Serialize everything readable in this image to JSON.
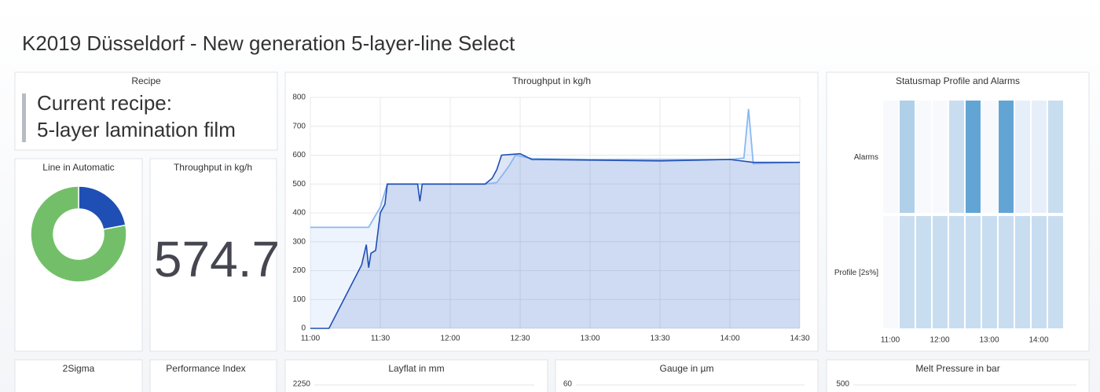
{
  "title": "K2019 Düsseldorf - New generation 5-layer-line Select",
  "recipe": {
    "title": "Recipe",
    "line1": "Current recipe:",
    "line2": "5-layer lamination film"
  },
  "stat": {
    "title": "Throughput in kg/h",
    "value": 574.7
  },
  "panels": {
    "sigma": "2Sigma",
    "performance": "Performance Index"
  },
  "chart_data": [
    {
      "type": "pie",
      "title": "Line in Automatic",
      "donut": true,
      "values": [
        22,
        78
      ],
      "colors": [
        "#1f4fb4",
        "#73bf69"
      ]
    },
    {
      "type": "line",
      "title": "Throughput in kg/h",
      "grid": true,
      "xlim": [
        "11:00",
        "14:30"
      ],
      "xticks": [
        "11:00",
        "11:30",
        "12:00",
        "12:30",
        "13:00",
        "13:30",
        "14:00",
        "14:30"
      ],
      "ylim": [
        0,
        800
      ],
      "yticks": [
        0,
        100,
        200,
        300,
        400,
        500,
        600,
        700,
        800
      ],
      "series": [
        {
          "color": "#8ab8f0",
          "x": [
            "11:00",
            "11:25",
            "11:30",
            "11:33",
            "12:15",
            "12:20",
            "12:25",
            "12:28",
            "12:35",
            "13:00",
            "14:00",
            "14:06",
            "14:08",
            "14:10",
            "14:30"
          ],
          "values": [
            350,
            350,
            420,
            500,
            500,
            505,
            560,
            600,
            588,
            585,
            585,
            590,
            760,
            570,
            575
          ]
        },
        {
          "color": "#1f4fb4",
          "x": [
            "11:00",
            "11:08",
            "11:22",
            "11:24",
            "11:25",
            "11:26",
            "11:28",
            "11:30",
            "11:32",
            "11:33",
            "11:46",
            "11:47",
            "11:48",
            "12:15",
            "12:18",
            "12:20",
            "12:22",
            "12:30",
            "12:35",
            "13:30",
            "14:00",
            "14:10",
            "14:30"
          ],
          "values": [
            0,
            0,
            220,
            290,
            210,
            260,
            270,
            400,
            430,
            500,
            500,
            440,
            500,
            500,
            520,
            550,
            600,
            605,
            585,
            580,
            585,
            575,
            575
          ]
        }
      ]
    },
    {
      "type": "statusmap",
      "title": "Statusmap Profile and Alarms",
      "rows": [
        "Alarms",
        "Profile [2s%]"
      ],
      "values": [
        [
          0,
          3,
          0,
          0,
          2,
          4,
          0,
          4,
          1,
          1,
          2
        ],
        [
          0,
          2,
          2,
          2,
          2,
          2,
          2,
          2,
          2,
          2,
          2
        ]
      ],
      "palette": [
        "#f7f9fc",
        "#e6eff9",
        "#c9ddf0",
        "#b0d0ea",
        "#62a5d5"
      ],
      "xticks": [
        "11:00",
        "12:00",
        "13:00",
        "14:00"
      ]
    },
    {
      "type": "line",
      "title": "Layflat in mm",
      "yticks": [
        2250
      ]
    },
    {
      "type": "line",
      "title": "Gauge in µm",
      "yticks": [
        60
      ]
    },
    {
      "type": "line",
      "title": "Melt Pressure in bar",
      "yticks": [
        500
      ]
    }
  ]
}
